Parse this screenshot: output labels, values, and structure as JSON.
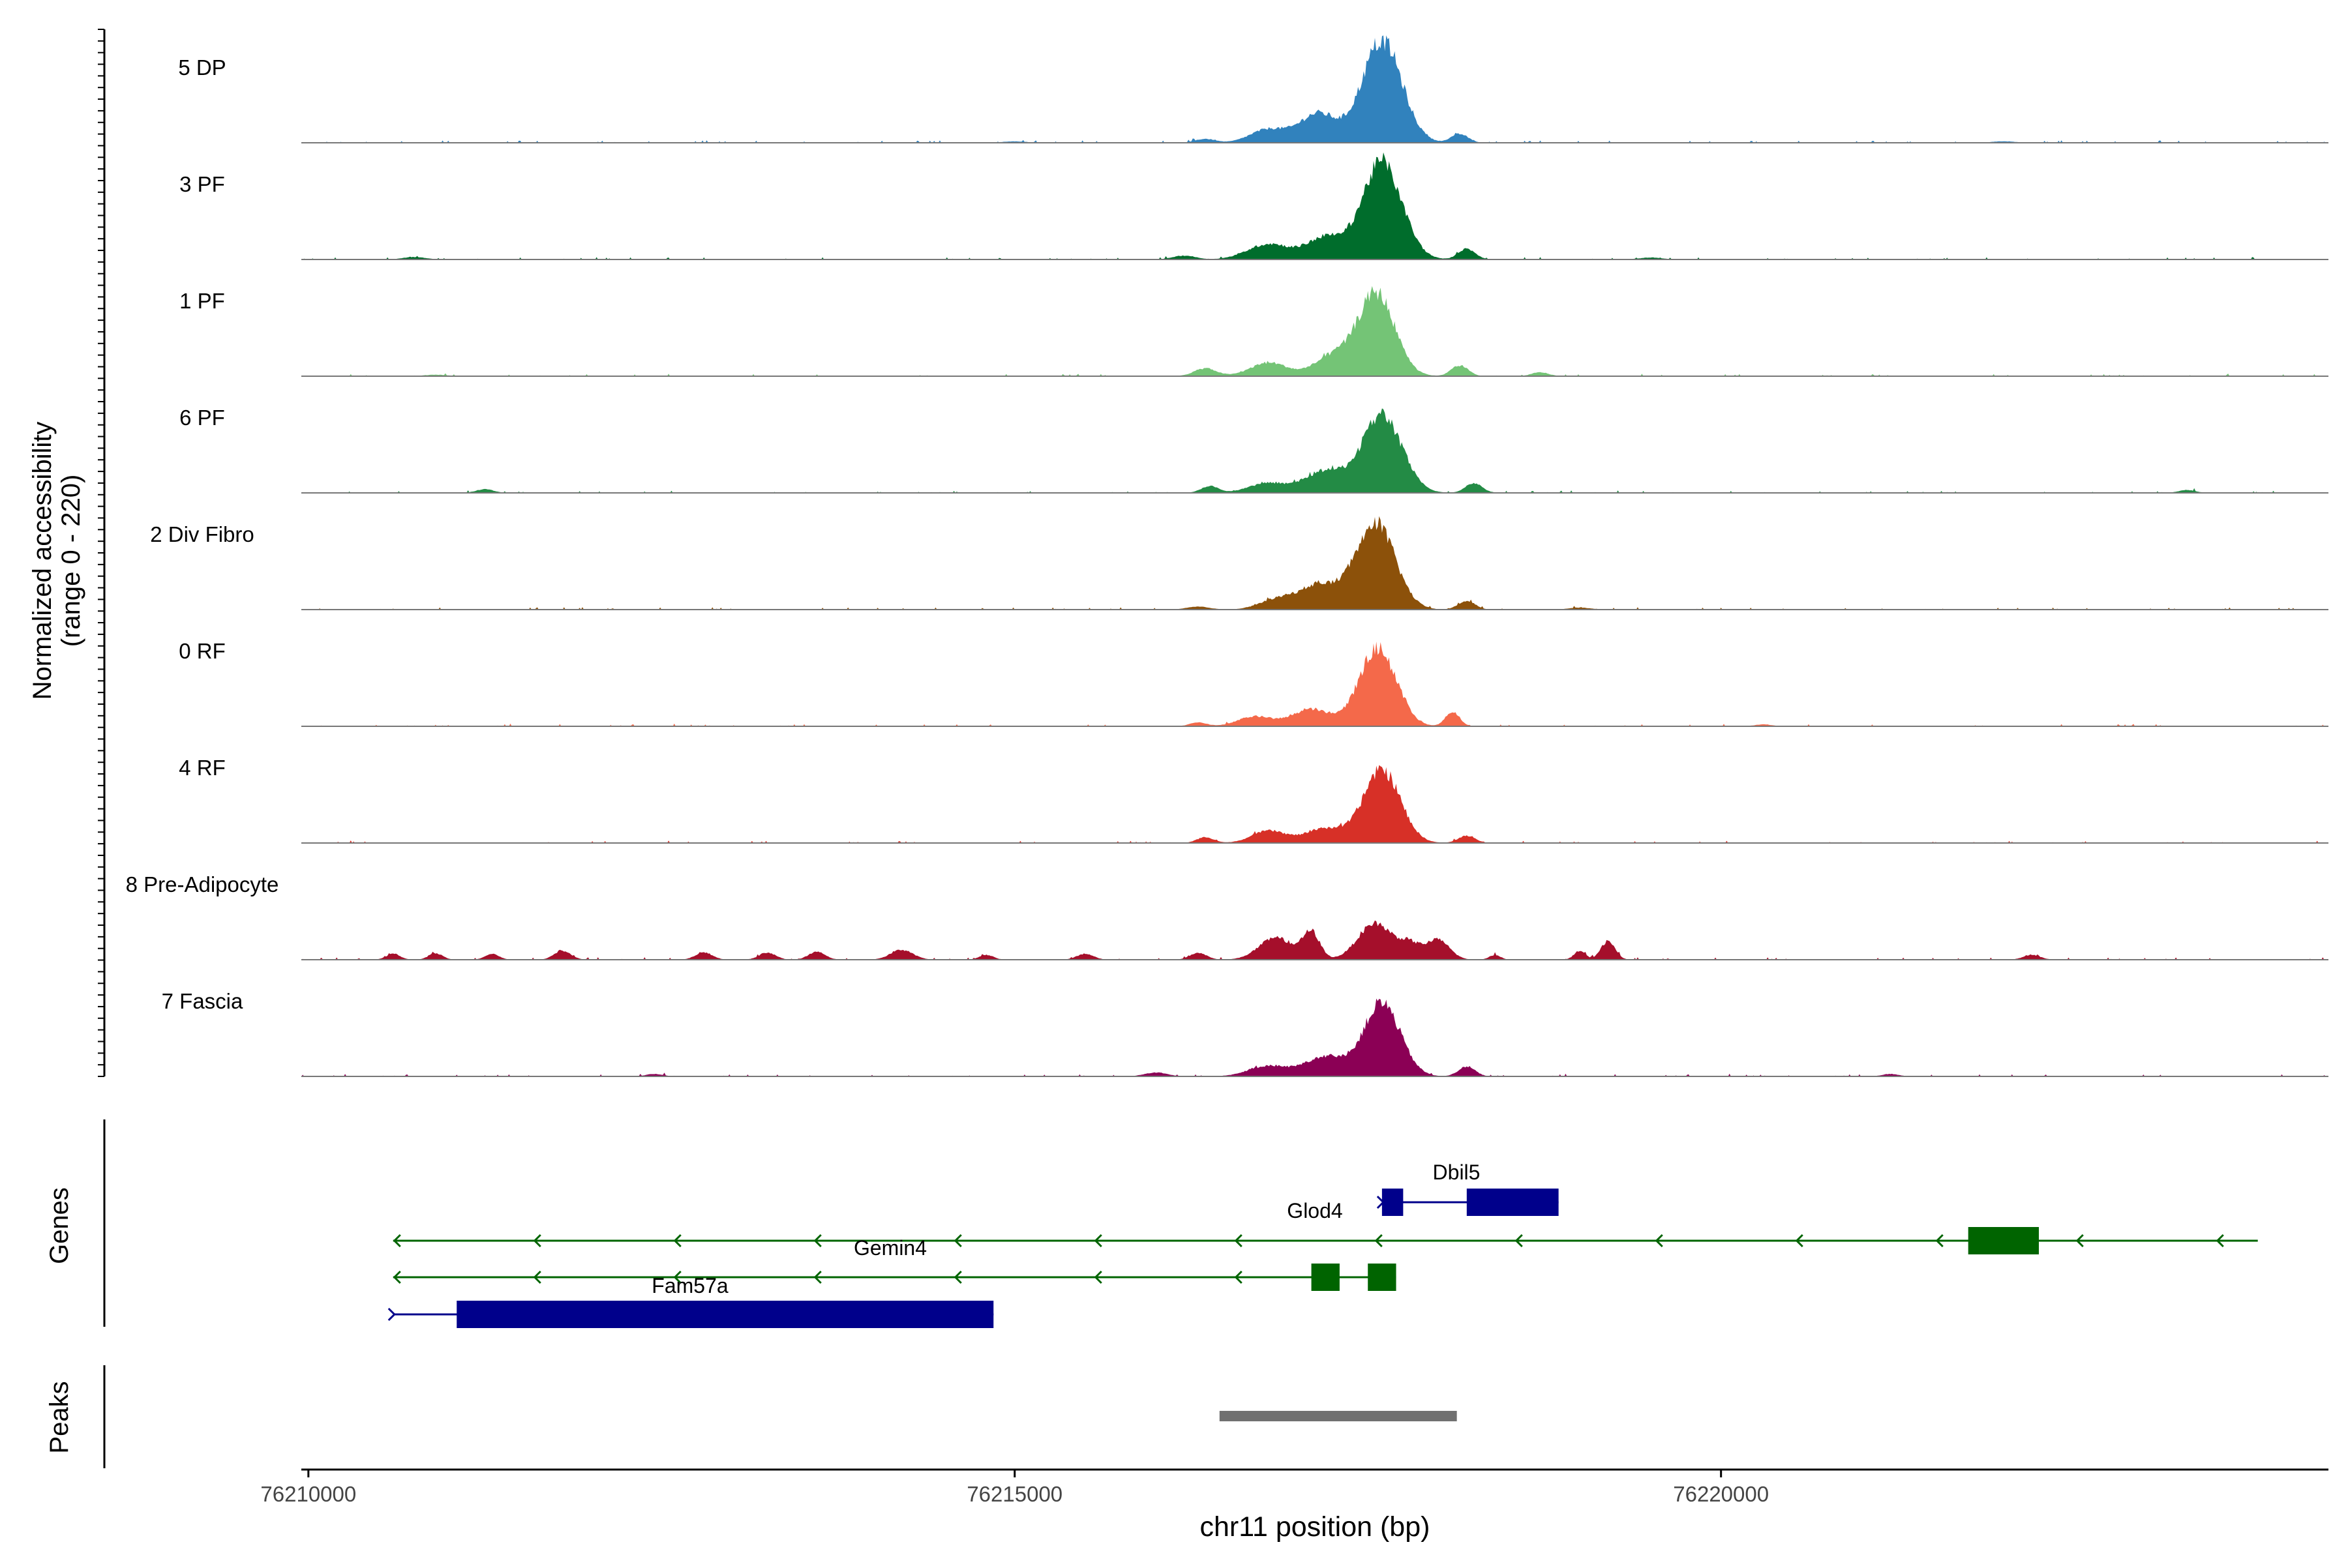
{
  "chart_data": {
    "type": "area",
    "title": "",
    "xlabel": "chr11 position (bp)",
    "ylabel": "Normalized accessibility\n(range 0 - 220)",
    "ylabel_line1": "Normalized accessibility",
    "ylabel_line2": "(range 0 - 220)",
    "xlim": [
      76209950,
      76224300
    ],
    "ylim": [
      0,
      220
    ],
    "x_ticks": [
      76210000,
      76215000,
      76220000
    ],
    "x_tick_labels": [
      "76210000",
      "76215000",
      "76220000"
    ],
    "track_labels": {
      "genes": "Genes",
      "peaks": "Peaks"
    },
    "series": [
      {
        "name": "5 DP",
        "color": "#3182bd",
        "peaks": [
          [
            76217600,
            210,
            140
          ],
          [
            76217150,
            60,
            130
          ],
          [
            76216800,
            28,
            130
          ],
          [
            76218150,
            18,
            60
          ],
          [
            76216350,
            8,
            70
          ],
          [
            76215000,
            3,
            80
          ],
          [
            76222000,
            3,
            80
          ]
        ]
      },
      {
        "name": "3 PF",
        "color": "#006d2c",
        "peaks": [
          [
            76217600,
            200,
            140
          ],
          [
            76217200,
            45,
            130
          ],
          [
            76216800,
            32,
            150
          ],
          [
            76218200,
            22,
            60
          ],
          [
            76216200,
            8,
            80
          ],
          [
            76210750,
            5,
            80
          ],
          [
            76219500,
            4,
            80
          ]
        ]
      },
      {
        "name": "1 PF",
        "color": "#74c476",
        "peaks": [
          [
            76217560,
            170,
            130
          ],
          [
            76217250,
            40,
            130
          ],
          [
            76216800,
            28,
            130
          ],
          [
            76218150,
            22,
            60
          ],
          [
            76216350,
            16,
            80
          ],
          [
            76218720,
            8,
            60
          ],
          [
            76210900,
            3,
            80
          ]
        ]
      },
      {
        "name": "6 PF",
        "color": "#238b45",
        "peaks": [
          [
            76217600,
            160,
            140
          ],
          [
            76217200,
            45,
            140
          ],
          [
            76216800,
            20,
            140
          ],
          [
            76218250,
            20,
            60
          ],
          [
            76216380,
            14,
            60
          ],
          [
            76211250,
            8,
            60
          ],
          [
            76223300,
            6,
            60
          ]
        ]
      },
      {
        "name": "2 Div Fibro",
        "color": "#8c510a",
        "peaks": [
          [
            76217550,
            180,
            140
          ],
          [
            76217150,
            50,
            140
          ],
          [
            76216850,
            20,
            120
          ],
          [
            76218200,
            18,
            60
          ],
          [
            76216300,
            6,
            80
          ],
          [
            76219000,
            4,
            80
          ]
        ]
      },
      {
        "name": "0 RF",
        "color": "#f4694a",
        "peaks": [
          [
            76217570,
            160,
            130
          ],
          [
            76217100,
            35,
            140
          ],
          [
            76216700,
            20,
            120
          ],
          [
            76218100,
            30,
            50
          ],
          [
            76216300,
            8,
            60
          ],
          [
            76220300,
            4,
            60
          ]
        ]
      },
      {
        "name": "4 RF",
        "color": "#d73027",
        "peaks": [
          [
            76217600,
            150,
            130
          ],
          [
            76217200,
            30,
            140
          ],
          [
            76216800,
            25,
            120
          ],
          [
            76218200,
            15,
            60
          ],
          [
            76216350,
            12,
            60
          ]
        ]
      },
      {
        "name": "8 Pre-Adipocyte",
        "color": "#a50f2b",
        "peaks": [
          [
            76217550,
            75,
            120
          ],
          [
            76217100,
            55,
            60
          ],
          [
            76216850,
            45,
            120
          ],
          [
            76218000,
            40,
            80
          ],
          [
            76217800,
            30,
            80
          ],
          [
            76219200,
            38,
            50
          ],
          [
            76219000,
            18,
            40
          ],
          [
            76218400,
            10,
            40
          ],
          [
            76214200,
            20,
            80
          ],
          [
            76213600,
            16,
            60
          ],
          [
            76213250,
            14,
            60
          ],
          [
            76212800,
            15,
            60
          ],
          [
            76211800,
            18,
            60
          ],
          [
            76211300,
            12,
            50
          ],
          [
            76210900,
            13,
            50
          ],
          [
            76222200,
            10,
            60
          ],
          [
            76210600,
            12,
            50
          ],
          [
            76214800,
            10,
            50
          ],
          [
            76215500,
            12,
            60
          ],
          [
            76216300,
            14,
            60
          ]
        ]
      },
      {
        "name": "7 Fascia",
        "color": "#8b0055",
        "peaks": [
          [
            76217600,
            150,
            130
          ],
          [
            76217200,
            40,
            140
          ],
          [
            76216800,
            22,
            140
          ],
          [
            76218200,
            20,
            60
          ],
          [
            76216000,
            8,
            80
          ],
          [
            76212450,
            5,
            60
          ],
          [
            76221200,
            5,
            60
          ]
        ]
      }
    ],
    "genes": [
      {
        "name": "Dbil5",
        "strand": "+",
        "color": "#00008b",
        "start": 76217600,
        "end": 76218850,
        "exons": [
          [
            76217600,
            76217750
          ],
          [
            76218200,
            76218850
          ]
        ],
        "row": 0
      },
      {
        "name": "Glod4",
        "strand": "-",
        "color": "#006400",
        "start": 76210600,
        "end": 76223800,
        "exons": [
          [
            76221750,
            76222250
          ]
        ],
        "row": 1
      },
      {
        "name": "Gemin4",
        "strand": "-",
        "color": "#006400",
        "start": 76210600,
        "end": 76217700,
        "exons": [
          [
            76217100,
            76217300
          ],
          [
            76217500,
            76217700
          ]
        ],
        "row": 2
      },
      {
        "name": "Fam57a",
        "strand": "+",
        "color": "#00008b",
        "start": 76210600,
        "end": 76214850,
        "exons": [
          [
            76211050,
            76214850
          ]
        ],
        "row": 3
      }
    ],
    "peaks_track": [
      [
        76216450,
        76218130
      ]
    ],
    "peak_color": "#707070"
  }
}
